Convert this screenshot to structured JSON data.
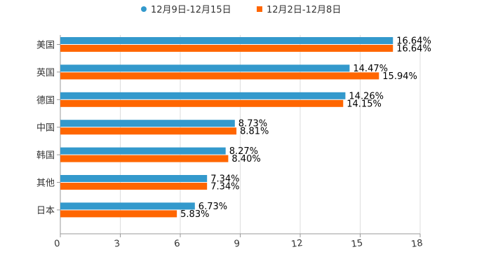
{
  "chart_data": {
    "type": "bar",
    "orientation": "horizontal",
    "categories": [
      "美国",
      "英国",
      "德国",
      "中国",
      "韩国",
      "其他",
      "日本"
    ],
    "series": [
      {
        "name": "12月9日-12月15日",
        "color": "#3399cc",
        "values": [
          16.64,
          14.47,
          14.26,
          8.73,
          8.27,
          7.34,
          6.73
        ],
        "labels": [
          "16.64%",
          "14.47%",
          "14.26%",
          "8.73%",
          "8.27%",
          "7.34%",
          "6.73%"
        ]
      },
      {
        "name": "12月2日-12月8日",
        "color": "#ff6600",
        "values": [
          16.64,
          15.94,
          14.15,
          8.81,
          8.4,
          7.34,
          5.83
        ],
        "labels": [
          "16.64%",
          "15.94%",
          "14.15%",
          "8.81%",
          "8.40%",
          "7.34%",
          "5.83%"
        ]
      }
    ],
    "xlim": [
      0,
      18
    ],
    "xticks": [
      "0",
      "3",
      "6",
      "9",
      "12",
      "15",
      "18"
    ],
    "grid": true,
    "legend_position": "top-center",
    "axis_color": "#999999",
    "grid_color": "#dddddd"
  }
}
